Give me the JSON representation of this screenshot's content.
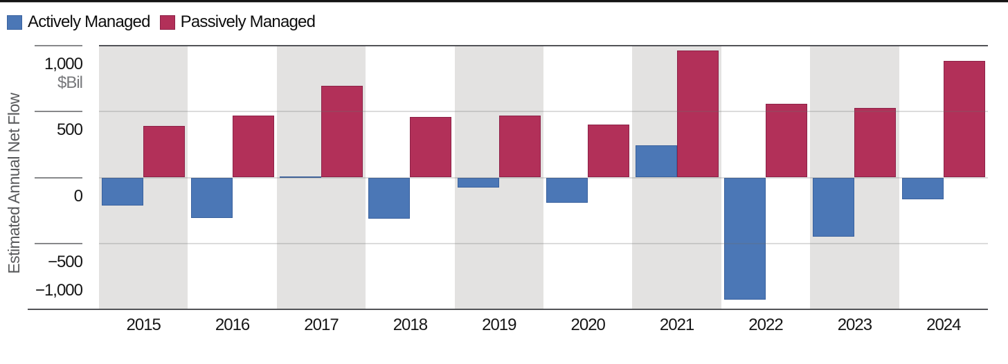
{
  "legend": {
    "items": [
      {
        "key": "active",
        "label": "Actively Managed",
        "color": "#4b77b6",
        "edge": "#39619e"
      },
      {
        "key": "passive",
        "label": "Passively Managed",
        "color": "#b23059",
        "edge": "#8c2147"
      }
    ]
  },
  "chart_data": {
    "type": "bar",
    "title": "",
    "ylabel": "Estimated Annual Net Flow",
    "unit_label": "$Bil",
    "categories": [
      "2015",
      "2016",
      "2017",
      "2018",
      "2019",
      "2020",
      "2021",
      "2022",
      "2023",
      "2024"
    ],
    "series": [
      {
        "name": "Actively Managed",
        "key": "active",
        "color": "#4b77b6",
        "edge": "#39619e",
        "values": [
          -210,
          -305,
          10,
          -310,
          -75,
          -190,
          245,
          -925,
          -450,
          -165
        ]
      },
      {
        "name": "Passively Managed",
        "key": "passive",
        "color": "#b23059",
        "edge": "#8c2147",
        "values": [
          390,
          470,
          695,
          460,
          470,
          400,
          965,
          560,
          530,
          885
        ]
      }
    ],
    "ylim": [
      -1000,
      1000
    ],
    "y_axis": {
      "ticks": [
        {
          "value": 1000,
          "label": "1,000",
          "sub": "$Bil",
          "label_side": "below"
        },
        {
          "value": 500,
          "label": "500",
          "label_side": "below"
        },
        {
          "value": 0,
          "label": "0",
          "label_side": "below"
        },
        {
          "value": -500,
          "label": "−500",
          "label_side": "below"
        },
        {
          "value": -1000,
          "label": "−1,000",
          "label_side": "above"
        }
      ]
    },
    "grid": true,
    "legend_position": "top-left",
    "band_color": "#e3e2e1",
    "alternating_bands": true
  }
}
